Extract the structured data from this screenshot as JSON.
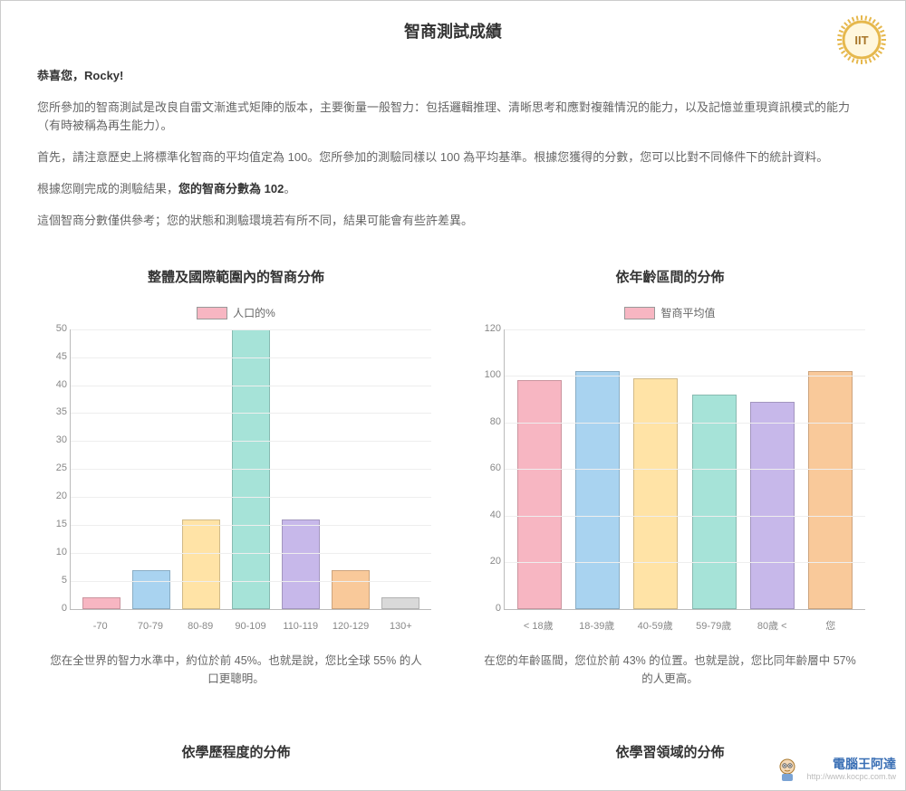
{
  "page": {
    "title": "智商測試成績",
    "greeting_prefix": "恭喜您，",
    "greeting_name": "Rocky!",
    "p1": "您所參加的智商測試是改良自雷文漸進式矩陣的版本，主要衡量一般智力：包括邏輯推理、清晰思考和應對複雜情況的能力，以及記憶並重現資訊模式的能力（有時被稱為再生能力）。",
    "p2": "首先，請注意歷史上將標準化智商的平均值定為 100。您所參加的測驗同樣以 100 為平均基準。根據您獲得的分數，您可以比對不同條件下的統計資料。",
    "p3_prefix": "根據您剛完成的測驗結果，",
    "p3_strong": "您的智商分數為 102",
    "p3_suffix": "。",
    "p4": "這個智商分數僅供參考；您的狀態和測驗環境若有所不同，結果可能會有些許差異。"
  },
  "chart1": {
    "title": "整體及國際範圍內的智商分佈",
    "legend_label": "人口的%",
    "legend_color": "#f7b6c2",
    "type": "bar",
    "ylim": [
      0,
      50
    ],
    "ytick_step": 5,
    "grid_color": "#eeeeee",
    "axis_color": "#bbbbbb",
    "bar_border": "rgba(0,0,0,0.18)",
    "categories": [
      "-70",
      "70-79",
      "80-89",
      "90-109",
      "110-119",
      "120-129",
      "130+"
    ],
    "values": [
      2,
      7,
      16,
      50,
      16,
      7,
      2
    ],
    "bar_colors": [
      "#f7b6c2",
      "#a9d3f0",
      "#ffe3a6",
      "#a6e3d8",
      "#c7b8ea",
      "#f9c99a",
      "#d9d9d9"
    ],
    "caption": "您在全世界的智力水準中，約位於前 45%。也就是說，您比全球 55% 的人口更聰明。"
  },
  "chart2": {
    "title": "依年齡區間的分佈",
    "legend_label": "智商平均值",
    "legend_color": "#f7b6c2",
    "type": "bar",
    "ylim": [
      0,
      120
    ],
    "ytick_step": 20,
    "grid_color": "#eeeeee",
    "axis_color": "#bbbbbb",
    "bar_border": "rgba(0,0,0,0.18)",
    "categories": [
      "< 18歲",
      "18-39歲",
      "40-59歲",
      "59-79歲",
      "80歲 <",
      "您"
    ],
    "values": [
      98,
      102,
      99,
      92,
      89,
      102
    ],
    "bar_colors": [
      "#f7b6c2",
      "#a9d3f0",
      "#ffe3a6",
      "#a6e3d8",
      "#c7b8ea",
      "#f9c99a"
    ],
    "caption": "在您的年齡區間，您位於前 43% 的位置。也就是說，您比同年齡層中 57% 的人更高。"
  },
  "secondary": {
    "left_title": "依學歷程度的分佈",
    "right_title": "依學習領域的分佈"
  },
  "badge": {
    "text": "IIT",
    "ring_color": "#e6b84d",
    "inner_bg": "#fff7de",
    "text_color": "#a8762a"
  },
  "watermark": {
    "title": "電腦王阿達",
    "url": "http://www.kocpc.com.tw"
  }
}
